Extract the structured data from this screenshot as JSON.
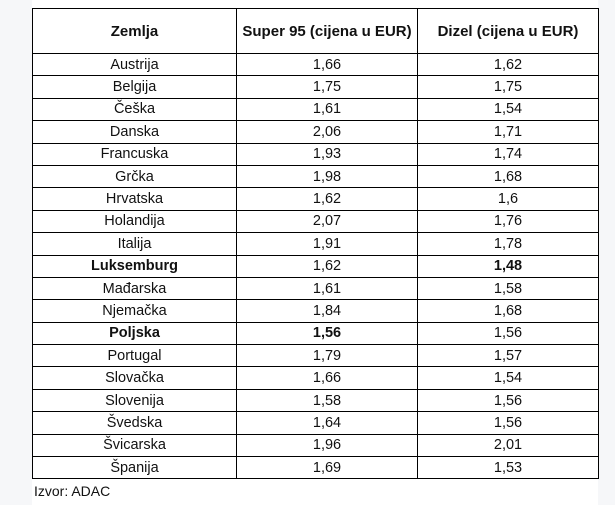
{
  "table": {
    "headers": [
      "Zemlja",
      "Super 95 (cijena u EUR)",
      "Dizel (cijena u EUR)"
    ],
    "rows": [
      {
        "country": "Austrija",
        "super95": "1,66",
        "diesel": "1,62",
        "bold_country": false,
        "bold_super95": false,
        "bold_diesel": false
      },
      {
        "country": "Belgija",
        "super95": "1,75",
        "diesel": "1,75",
        "bold_country": false,
        "bold_super95": false,
        "bold_diesel": false
      },
      {
        "country": "Češka",
        "super95": "1,61",
        "diesel": "1,54",
        "bold_country": false,
        "bold_super95": false,
        "bold_diesel": false
      },
      {
        "country": "Danska",
        "super95": "2,06",
        "diesel": "1,71",
        "bold_country": false,
        "bold_super95": false,
        "bold_diesel": false
      },
      {
        "country": "Francuska",
        "super95": "1,93",
        "diesel": "1,74",
        "bold_country": false,
        "bold_super95": false,
        "bold_diesel": false
      },
      {
        "country": "Grčka",
        "super95": "1,98",
        "diesel": "1,68",
        "bold_country": false,
        "bold_super95": false,
        "bold_diesel": false
      },
      {
        "country": "Hrvatska",
        "super95": "1,62",
        "diesel": "1,6",
        "bold_country": false,
        "bold_super95": false,
        "bold_diesel": false
      },
      {
        "country": "Holandija",
        "super95": "2,07",
        "diesel": "1,76",
        "bold_country": false,
        "bold_super95": false,
        "bold_diesel": false
      },
      {
        "country": "Italija",
        "super95": "1,91",
        "diesel": "1,78",
        "bold_country": false,
        "bold_super95": false,
        "bold_diesel": false
      },
      {
        "country": "Luksemburg",
        "super95": "1,62",
        "diesel": "1,48",
        "bold_country": true,
        "bold_super95": false,
        "bold_diesel": true
      },
      {
        "country": "Mađarska",
        "super95": "1,61",
        "diesel": "1,58",
        "bold_country": false,
        "bold_super95": false,
        "bold_diesel": false
      },
      {
        "country": "Njemačka",
        "super95": "1,84",
        "diesel": "1,68",
        "bold_country": false,
        "bold_super95": false,
        "bold_diesel": false
      },
      {
        "country": "Poljska",
        "super95": "1,56",
        "diesel": "1,56",
        "bold_country": true,
        "bold_super95": true,
        "bold_diesel": false
      },
      {
        "country": "Portugal",
        "super95": "1,79",
        "diesel": "1,57",
        "bold_country": false,
        "bold_super95": false,
        "bold_diesel": false
      },
      {
        "country": "Slovačka",
        "super95": "1,66",
        "diesel": "1,54",
        "bold_country": false,
        "bold_super95": false,
        "bold_diesel": false
      },
      {
        "country": "Slovenija",
        "super95": "1,58",
        "diesel": "1,56",
        "bold_country": false,
        "bold_super95": false,
        "bold_diesel": false
      },
      {
        "country": "Švedska",
        "super95": "1,64",
        "diesel": "1,56",
        "bold_country": false,
        "bold_super95": false,
        "bold_diesel": false
      },
      {
        "country": "Švicarska",
        "super95": "1,96",
        "diesel": "2,01",
        "bold_country": false,
        "bold_super95": false,
        "bold_diesel": false
      },
      {
        "country": "Španija",
        "super95": "1,69",
        "diesel": "1,53",
        "bold_country": false,
        "bold_super95": false,
        "bold_diesel": false
      }
    ]
  },
  "source": "Izvor: ADAC"
}
